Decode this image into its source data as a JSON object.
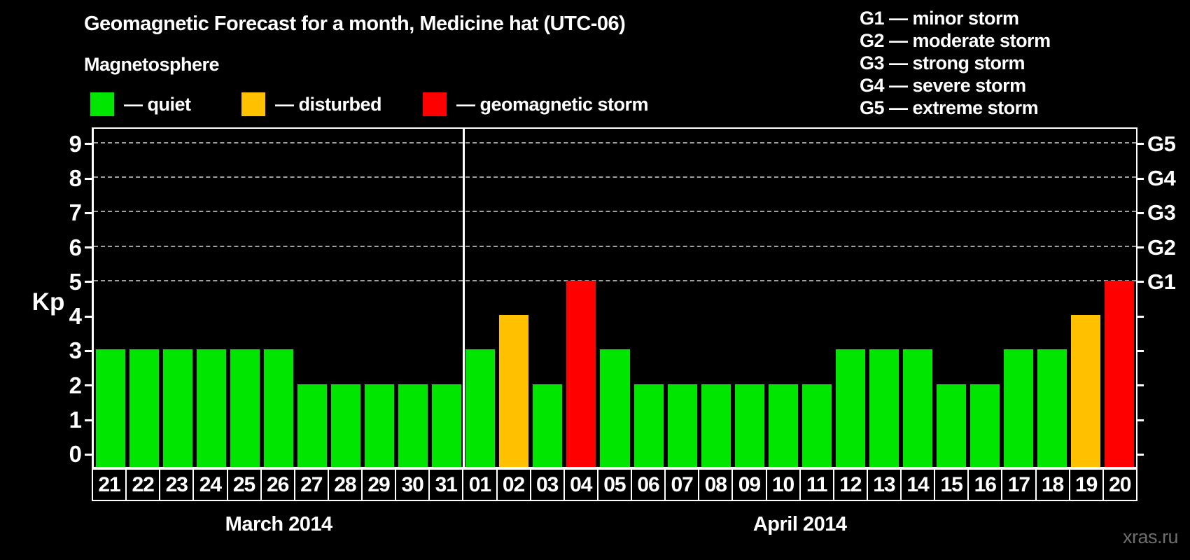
{
  "title": "Geomagnetic Forecast for a month, Medicine hat (UTC-06)",
  "subtitle": "Magnetosphere",
  "legend": {
    "items": [
      {
        "key": "quiet",
        "label": "— quiet",
        "color": "#00e600"
      },
      {
        "key": "disturbed",
        "label": "— disturbed",
        "color": "#ffc000"
      },
      {
        "key": "storm",
        "label": "— geomagnetic storm",
        "color": "#ff0000"
      }
    ]
  },
  "g_scale_legend": {
    "items": [
      "G1 — minor storm",
      "G2 — moderate storm",
      "G3 — strong storm",
      "G4 — severe storm",
      "G5 — extreme storm"
    ]
  },
  "watermark": "xras.ru",
  "chart_data": {
    "type": "bar",
    "title": "Geomagnetic Forecast for a month, Medicine hat (UTC-06)",
    "ylabel": "Kp",
    "ylim": [
      -0.4,
      9.4
    ],
    "yticks": [
      0,
      1,
      2,
      3,
      4,
      5,
      6,
      7,
      8,
      9
    ],
    "grid": "dashed-horizontal",
    "grid_kp_levels": [
      5,
      6,
      7,
      8,
      9
    ],
    "right_axis": {
      "ticks": [
        0,
        1,
        2,
        3,
        4,
        5,
        6,
        7,
        8,
        9
      ],
      "labels": [
        {
          "kp": 5,
          "text": "G1"
        },
        {
          "kp": 6,
          "text": "G2"
        },
        {
          "kp": 7,
          "text": "G3"
        },
        {
          "kp": 8,
          "text": "G4"
        },
        {
          "kp": 9,
          "text": "G5"
        }
      ]
    },
    "color_rule": {
      "disturbed_at": 4,
      "storm_from": 5
    },
    "months": [
      {
        "label": "March 2014",
        "days": [
          "21",
          "22",
          "23",
          "24",
          "25",
          "26",
          "27",
          "28",
          "29",
          "30",
          "31"
        ],
        "kp": [
          3,
          3,
          3,
          3,
          3,
          3,
          2,
          2,
          2,
          2,
          2
        ]
      },
      {
        "label": "April 2014",
        "days": [
          "01",
          "02",
          "03",
          "04",
          "05",
          "06",
          "07",
          "08",
          "09",
          "10",
          "11",
          "12",
          "13",
          "14",
          "15",
          "16",
          "17",
          "18",
          "19",
          "20"
        ],
        "kp": [
          3,
          4,
          2,
          5,
          3,
          2,
          2,
          2,
          2,
          2,
          2,
          3,
          3,
          3,
          2,
          2,
          3,
          3,
          4,
          5
        ]
      }
    ],
    "legend_position": "top-left"
  }
}
